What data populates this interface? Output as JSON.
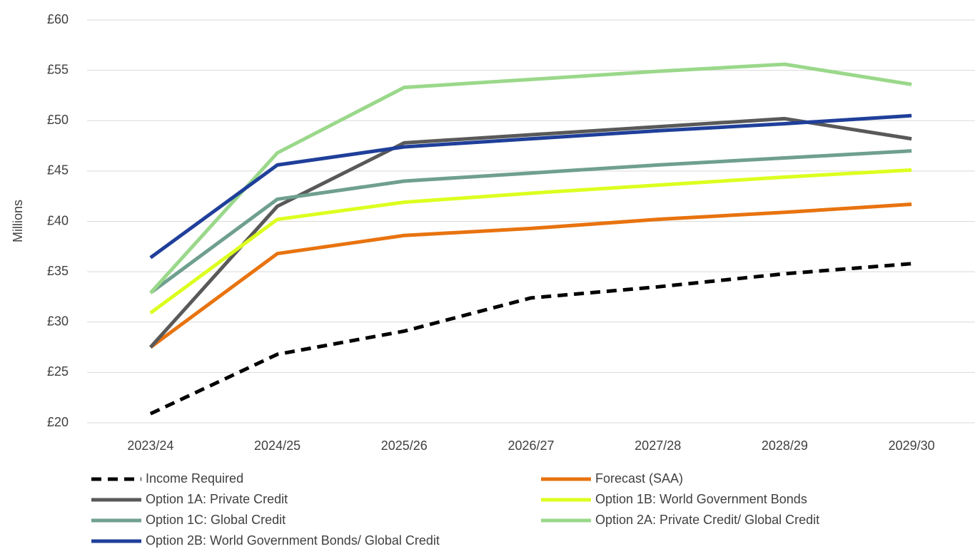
{
  "chart_data": {
    "type": "line",
    "y_label": "Millions",
    "categories": [
      "2023/24",
      "2024/25",
      "2025/26",
      "2026/27",
      "2027/28",
      "2028/29",
      "2029/30"
    ],
    "series": [
      {
        "name": "Income Required",
        "color": "#000000",
        "style": "dashed",
        "values": [
          20.9,
          26.8,
          29.1,
          32.4,
          33.5,
          34.8,
          35.8
        ]
      },
      {
        "name": "Forecast (SAA)",
        "color": "#e8730f",
        "values": [
          27.5,
          36.8,
          38.6,
          39.3,
          40.2,
          40.9,
          41.7
        ]
      },
      {
        "name": "Option 1A: Private Credit",
        "color": "#595959",
        "values": [
          27.5,
          41.5,
          47.8,
          48.6,
          49.4,
          50.2,
          48.2
        ]
      },
      {
        "name": "Option 1B: World Government Bonds",
        "color": "#ddff1f",
        "values": [
          30.9,
          40.2,
          41.9,
          42.8,
          43.6,
          44.4,
          45.1
        ]
      },
      {
        "name": "Option 1C: Global Credit",
        "color": "#6f9f8f",
        "values": [
          32.9,
          42.2,
          44.0,
          44.8,
          45.6,
          46.3,
          47.0
        ]
      },
      {
        "name": "Option 2A: Private Credit/ Global Credit",
        "color": "#9ad88a",
        "values": [
          32.9,
          46.8,
          53.3,
          54.1,
          54.9,
          55.6,
          53.6
        ]
      },
      {
        "name": "Option 2B: World Government Bonds/ Global Credit",
        "color": "#1f3f9a",
        "values": [
          36.4,
          45.6,
          47.4,
          48.2,
          49.0,
          49.7,
          50.5
        ]
      }
    ],
    "ylim": [
      20,
      60
    ],
    "yticks": [
      {
        "value": 20,
        "label": "£20"
      },
      {
        "value": 25,
        "label": "£25"
      },
      {
        "value": 30,
        "label": "£30"
      },
      {
        "value": 35,
        "label": "£35"
      },
      {
        "value": 40,
        "label": "£40"
      },
      {
        "value": 45,
        "label": "£45"
      },
      {
        "value": 50,
        "label": "£50"
      },
      {
        "value": 55,
        "label": "£55"
      },
      {
        "value": 60,
        "label": "£60"
      }
    ],
    "grid": true,
    "legend": "bottom"
  }
}
